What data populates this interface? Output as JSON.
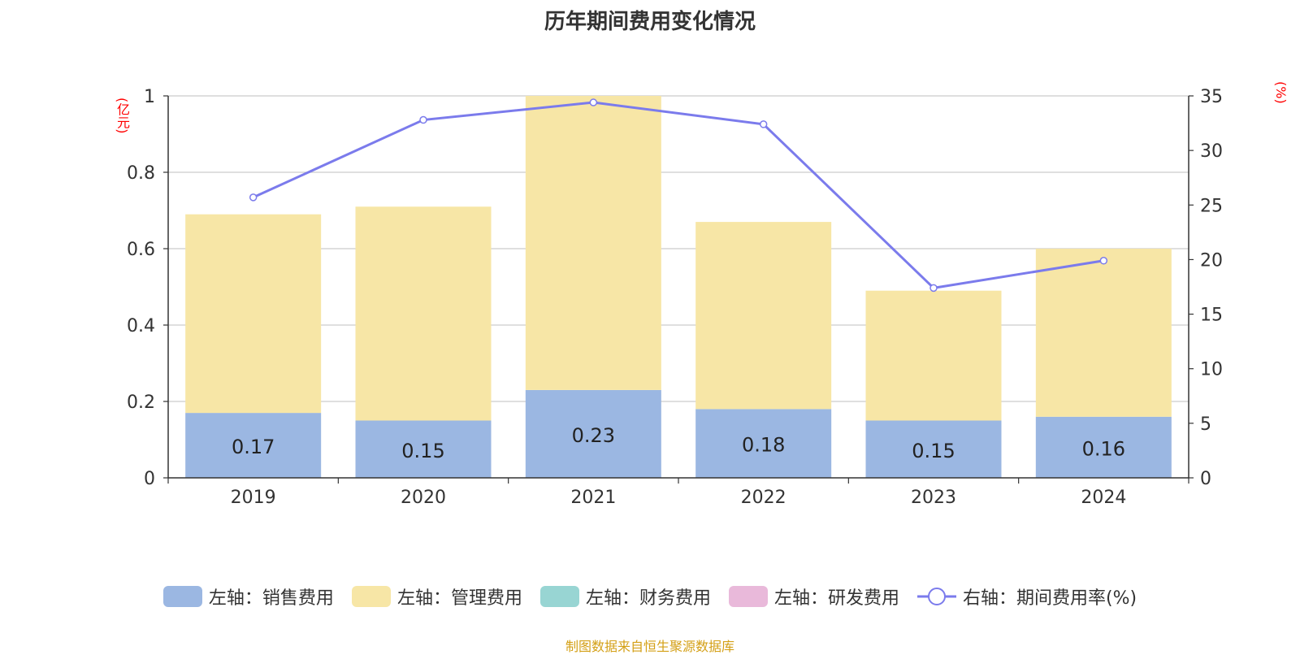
{
  "title": "历年期间费用变化情况",
  "left_unit": "(亿元)",
  "right_unit": "(%)",
  "footer": "制图数据来自恒生聚源数据库",
  "colors": {
    "sales": "#9bb7e2",
    "admin": "#f7e6a6",
    "finance": "#98d5d3",
    "rd": "#e9b9da",
    "rate": "#7b7bec"
  },
  "legend": [
    {
      "label": "左轴：销售费用",
      "color": "#9bb7e2",
      "kind": "bar"
    },
    {
      "label": "左轴：管理费用",
      "color": "#f7e6a6",
      "kind": "bar"
    },
    {
      "label": "左轴：财务费用",
      "color": "#98d5d3",
      "kind": "bar"
    },
    {
      "label": "左轴：研发费用",
      "color": "#e9b9da",
      "kind": "bar"
    },
    {
      "label": "右轴：期间费用率(%)",
      "color": "#7b7bec",
      "kind": "line"
    }
  ],
  "chart_data": {
    "type": "bar",
    "categories": [
      "2019",
      "2020",
      "2021",
      "2022",
      "2023",
      "2024"
    ],
    "series": [
      {
        "name": "左轴：销售费用",
        "axis": "left",
        "values": [
          0.17,
          0.15,
          0.23,
          0.18,
          0.15,
          0.16
        ]
      },
      {
        "name": "左轴：管理费用",
        "axis": "left",
        "values": [
          0.52,
          0.56,
          0.82,
          0.49,
          0.34,
          0.44
        ]
      },
      {
        "name": "右轴：期间费用率(%)",
        "axis": "right",
        "type": "line",
        "values": [
          25.7,
          32.8,
          34.4,
          32.4,
          17.4,
          19.9
        ]
      }
    ],
    "sales_labels": [
      "0.17",
      "0.15",
      "0.23",
      "0.18",
      "0.15",
      "0.16"
    ],
    "ylim_left": [
      0,
      1
    ],
    "ylim_right": [
      0,
      35
    ],
    "yticks_left": [
      "0",
      "0.2",
      "0.4",
      "0.6",
      "0.8",
      "1"
    ],
    "yticks_right": [
      "0",
      "5",
      "10",
      "15",
      "20",
      "25",
      "30",
      "35"
    ],
    "grid": true,
    "legend_position": "bottom"
  }
}
